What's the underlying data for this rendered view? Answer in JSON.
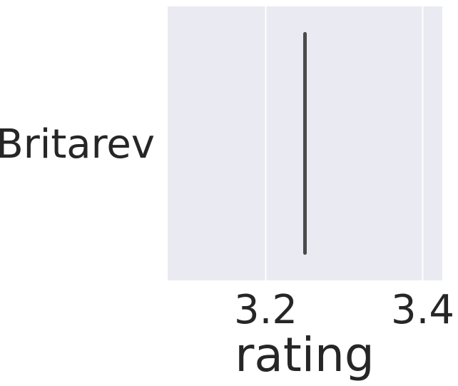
{
  "chart_data": {
    "type": "box",
    "orientation": "horizontal",
    "title": "",
    "xlabel": "rating",
    "ylabel": "",
    "categories": [
      "Britarev"
    ],
    "series": [
      {
        "name": "Britarev",
        "values": [
          3.25
        ],
        "min": 3.25,
        "q1": 3.25,
        "median": 3.25,
        "q3": 3.25,
        "max": 3.25
      }
    ],
    "xlim": [
      3.075,
      3.425
    ],
    "xticks": [
      3.2,
      3.4
    ],
    "xtick_labels": [
      "3.2",
      "3.4"
    ],
    "grid": true,
    "style": {
      "background": "#eaeaf2",
      "grid_color": "#ffffff",
      "line_color": "#4a4a4a",
      "text_color": "#262626"
    }
  }
}
